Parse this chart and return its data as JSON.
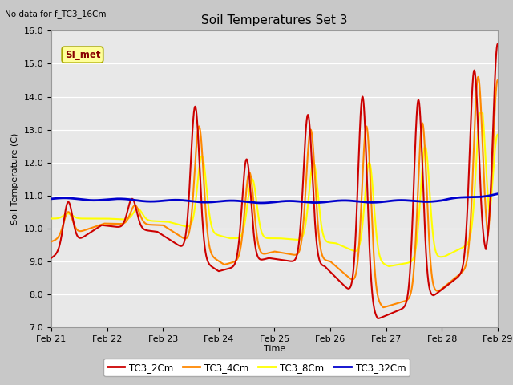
{
  "title": "Soil Temperatures Set 3",
  "subtitle": "No data for f_TC3_16Cm",
  "ylabel": "Soil Temperature (C)",
  "xlabel": "Time",
  "ylim": [
    7.0,
    16.0
  ],
  "yticks": [
    7.0,
    8.0,
    9.0,
    10.0,
    11.0,
    12.0,
    13.0,
    14.0,
    15.0,
    16.0
  ],
  "xtick_labels": [
    "Feb 21",
    "Feb 22",
    "Feb 23",
    "Feb 24",
    "Feb 25",
    "Feb 26",
    "Feb 27",
    "Feb 28",
    "Feb 29"
  ],
  "bg_color": "#e8e8e8",
  "fig_bg_color": "#c8c8c8",
  "legend_entries": [
    "TC3_2Cm",
    "TC3_4Cm",
    "TC3_8Cm",
    "TC3_32Cm"
  ],
  "legend_colors": [
    "#cc0000",
    "#ff8800",
    "#ffff00",
    "#0000cc"
  ],
  "si_met_label": "SI_met",
  "si_met_color": "#ffff99",
  "si_met_border": "#aaaa00"
}
